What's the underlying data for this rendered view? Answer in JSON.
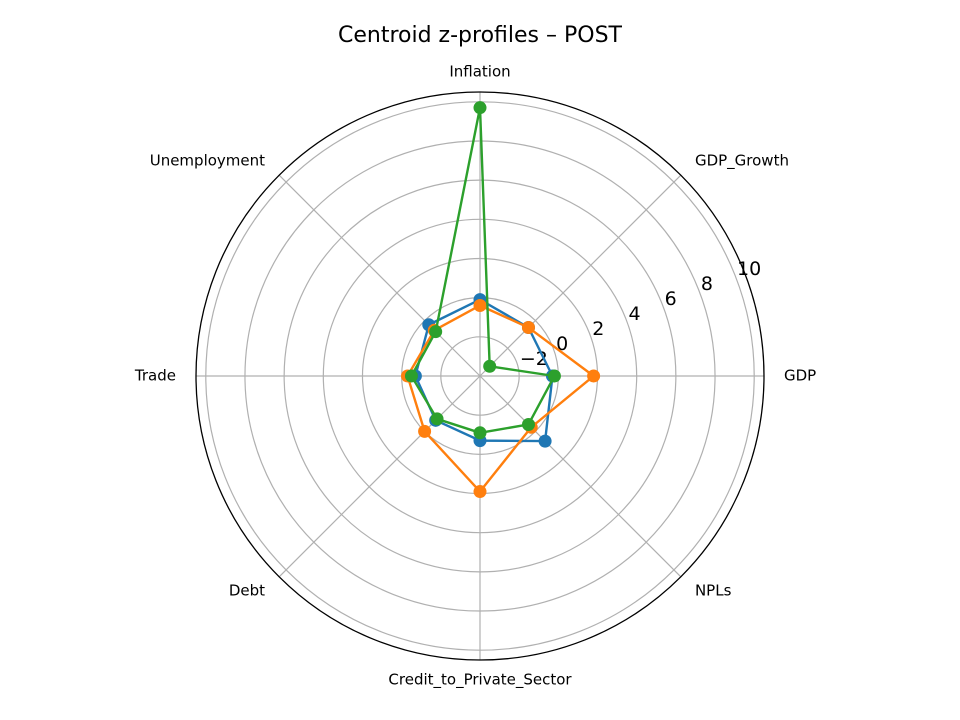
{
  "chart_data": {
    "type": "radar",
    "title": "Centroid z-profiles – POST",
    "categories": [
      "GDP",
      "GDP_Growth",
      "Inflation",
      "Unemployment",
      "Trade",
      "Debt",
      "Credit_to_Private_Sector",
      "NPLs"
    ],
    "r_ticks": [
      -2,
      0,
      2,
      4,
      6,
      8,
      10
    ],
    "r_tick_labels": [
      "−2",
      "0",
      "2",
      "4",
      "6",
      "8",
      "10"
    ],
    "rlim": [
      -4,
      10.5
    ],
    "grid": true,
    "series": [
      {
        "color": "#1f77b4",
        "values": [
          -0.3,
          -0.5,
          -0.1,
          -0.3,
          -0.7,
          -0.8,
          -0.7,
          0.7
        ]
      },
      {
        "color": "#ff7f0e",
        "values": [
          1.8,
          -0.5,
          -0.4,
          -0.7,
          -0.3,
          0.0,
          1.9,
          -0.3
        ]
      },
      {
        "color": "#2ca02c",
        "values": [
          -0.2,
          -3.3,
          9.7,
          -0.8,
          -0.5,
          -0.9,
          -1.1,
          -0.5
        ]
      }
    ]
  }
}
